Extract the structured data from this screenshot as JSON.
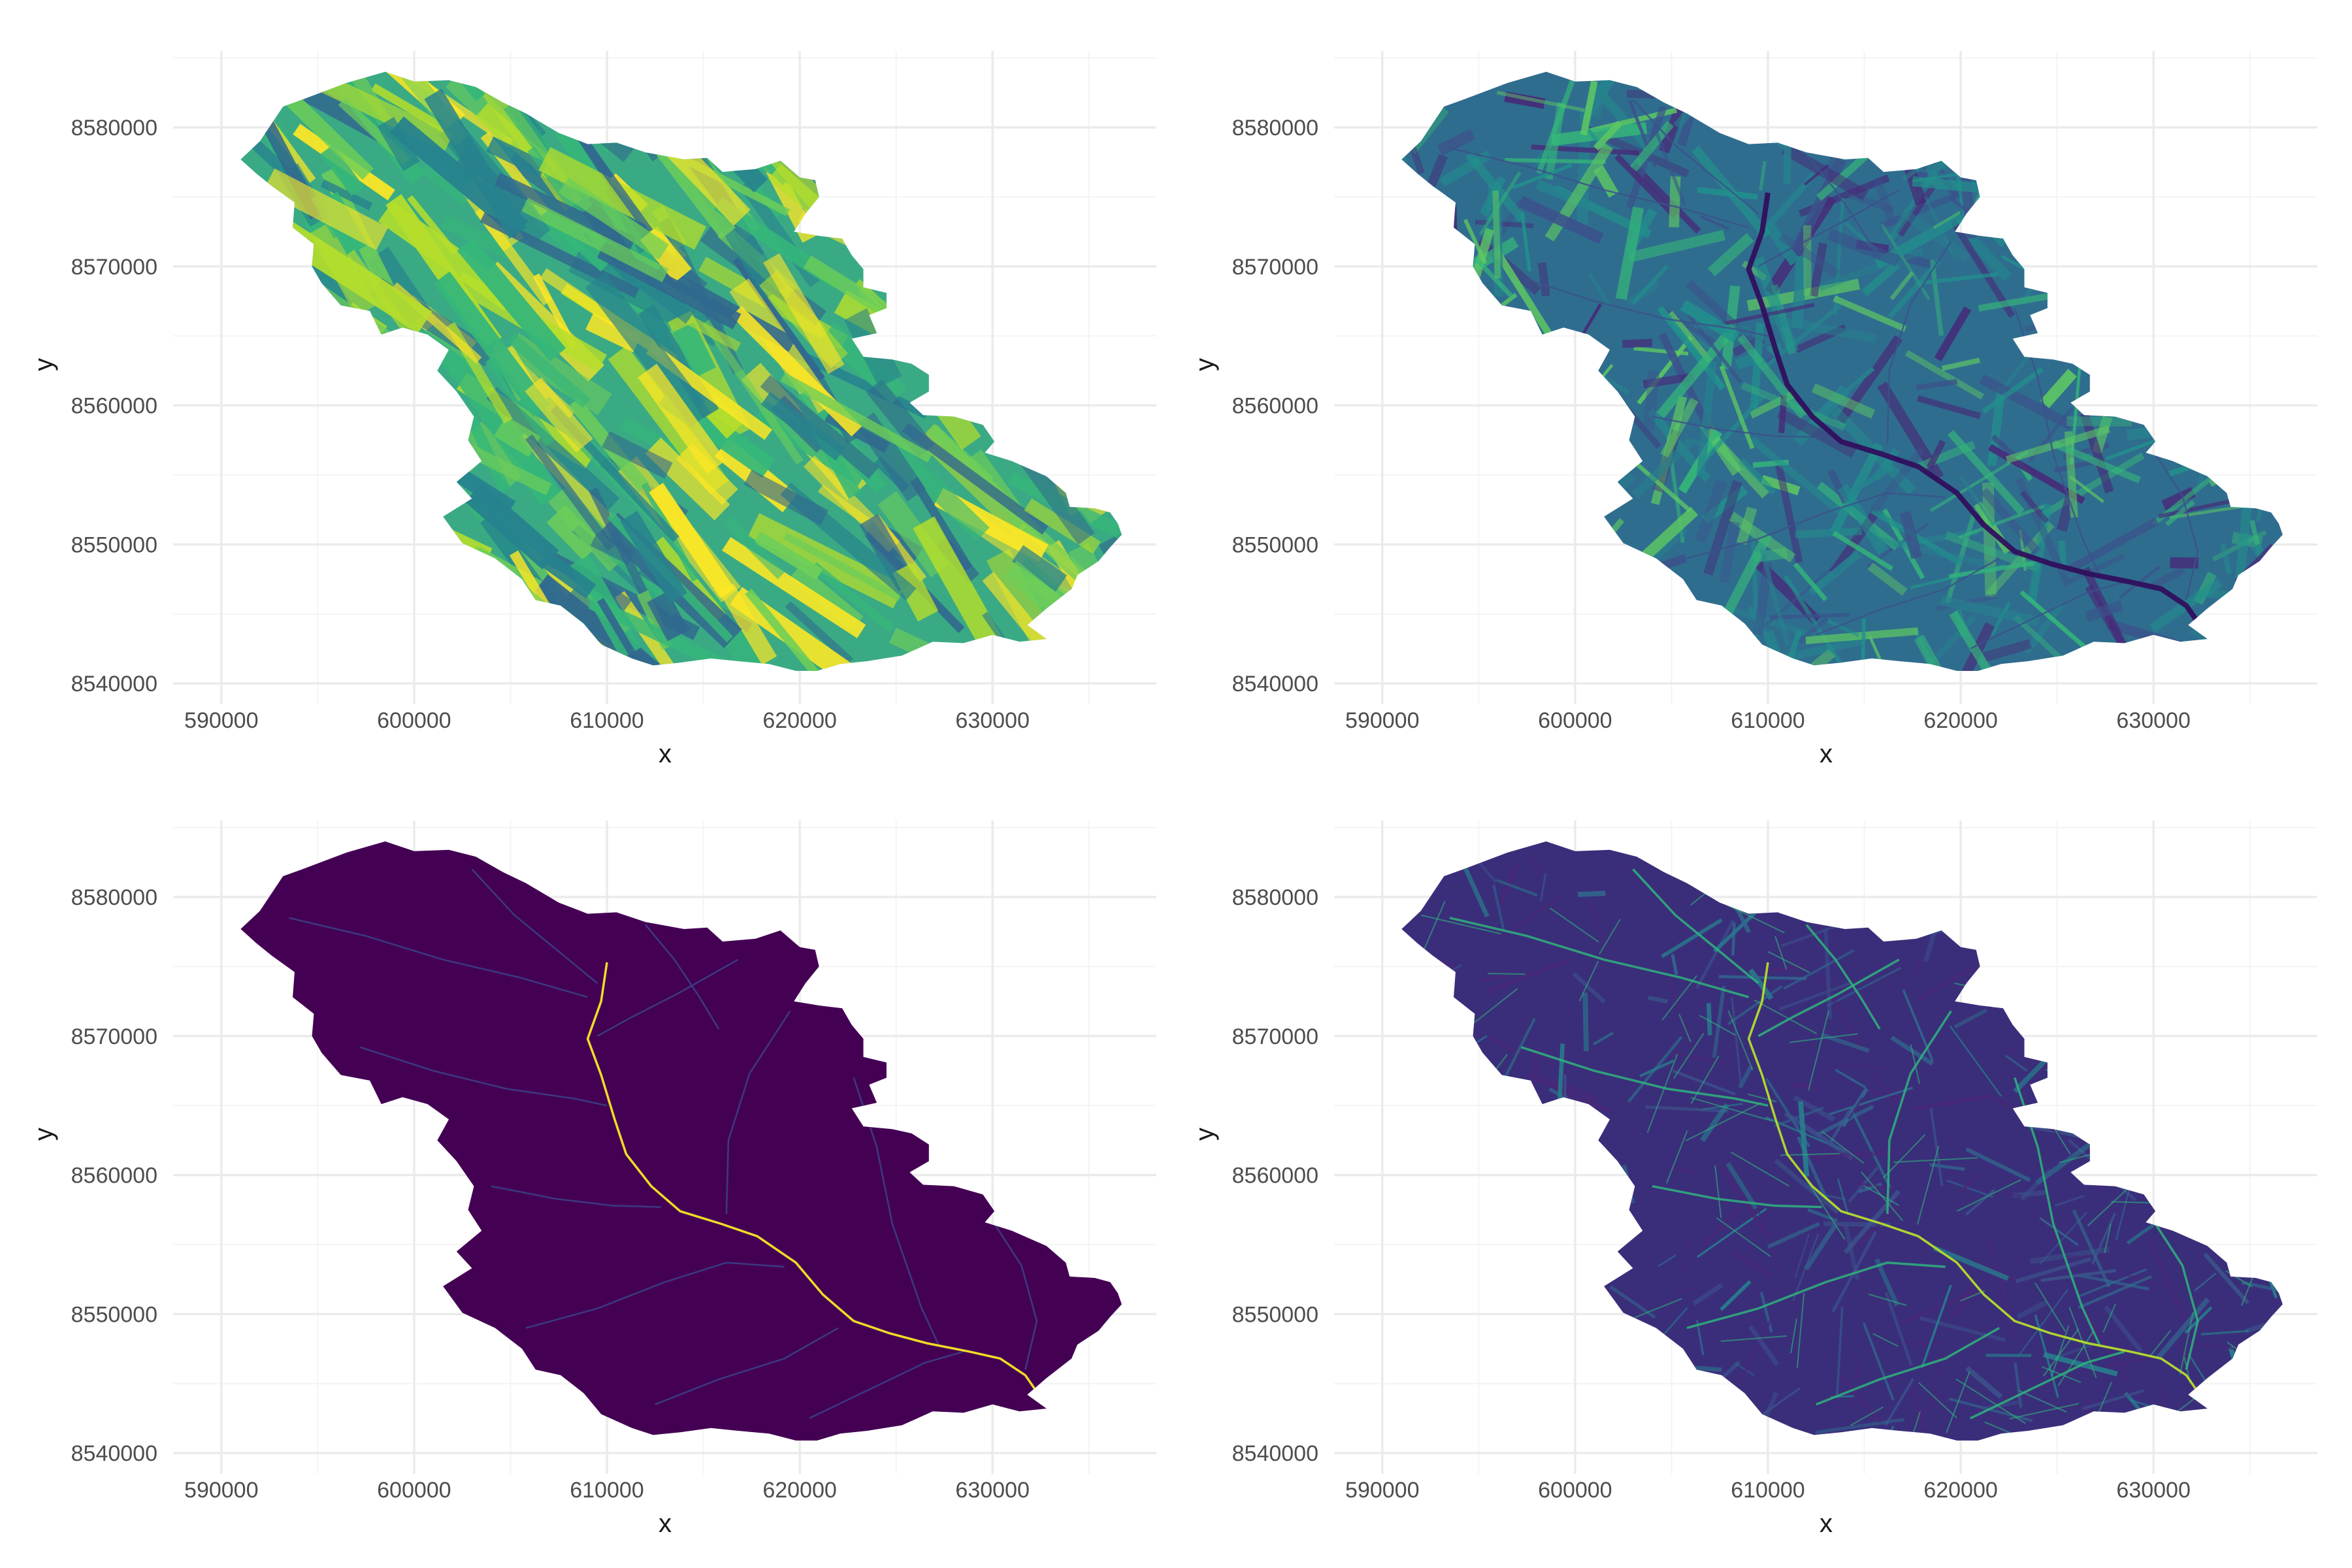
{
  "figure": {
    "layout": "2x2 grid of raster map panels",
    "background": "#ffffff",
    "grid_major_color": "#ebebeb",
    "grid_minor_color": "#f4f4f4",
    "tick_label_color": "#4d4d4d",
    "axis_title_color": "#1a1a1a"
  },
  "chart_data": [
    {
      "type": "heatmap",
      "panel": "top-left",
      "title": "",
      "xlabel": "x",
      "ylabel": "y",
      "xlim": [
        587500,
        638500
      ],
      "ylim": [
        8538500,
        8585500
      ],
      "x_ticks": [
        590000,
        600000,
        610000,
        620000,
        630000
      ],
      "y_ticks": [
        8540000,
        8550000,
        8560000,
        8570000,
        8580000
      ],
      "x_tick_labels": [
        "590000",
        "600000",
        "610000",
        "620000",
        "630000"
      ],
      "y_tick_labels": [
        "8540000",
        "8550000",
        "8560000",
        "8570000",
        "8580000"
      ],
      "grid": true,
      "legend": "none",
      "colormap": "viridis",
      "fill_color": "#3aaa84",
      "texture": "hillshade",
      "stream_color": null,
      "main_stream_color": null,
      "palette": [
        "#26828e",
        "#35b779",
        "#6ece58",
        "#b5de2b",
        "#fde725",
        "#31688e"
      ]
    },
    {
      "type": "heatmap",
      "panel": "top-right",
      "title": "",
      "xlabel": "x",
      "ylabel": "y",
      "xlim": [
        587500,
        638500
      ],
      "ylim": [
        8538500,
        8585500
      ],
      "x_ticks": [
        590000,
        600000,
        610000,
        620000,
        630000
      ],
      "y_ticks": [
        8540000,
        8550000,
        8560000,
        8570000,
        8580000
      ],
      "x_tick_labels": [
        "590000",
        "600000",
        "610000",
        "620000",
        "630000"
      ],
      "y_tick_labels": [
        "8540000",
        "8550000",
        "8560000",
        "8570000",
        "8580000"
      ],
      "grid": true,
      "legend": "none",
      "colormap": "viridis",
      "fill_color": "#2f6d8e",
      "texture": "slope",
      "stream_color": "#3b528b",
      "main_stream_color": "#30105e",
      "palette": [
        "#3b528b",
        "#26828e",
        "#21918c",
        "#35b779",
        "#5ec962",
        "#482878"
      ]
    },
    {
      "type": "heatmap",
      "panel": "bottom-left",
      "title": "",
      "xlabel": "x",
      "ylabel": "y",
      "xlim": [
        587500,
        638500
      ],
      "ylim": [
        8538500,
        8585500
      ],
      "x_ticks": [
        590000,
        600000,
        610000,
        620000,
        630000
      ],
      "y_ticks": [
        8540000,
        8550000,
        8560000,
        8570000,
        8580000
      ],
      "x_tick_labels": [
        "590000",
        "600000",
        "610000",
        "620000",
        "630000"
      ],
      "y_tick_labels": [
        "8540000",
        "8550000",
        "8560000",
        "8570000",
        "8580000"
      ],
      "grid": true,
      "legend": "none",
      "colormap": "viridis",
      "fill_color": "#440154",
      "texture": "flat",
      "stream_color": "#3b3f86",
      "main_stream_color": "#fde725",
      "palette": []
    },
    {
      "type": "heatmap",
      "panel": "bottom-right",
      "title": "",
      "xlabel": "x",
      "ylabel": "y",
      "xlim": [
        587500,
        638500
      ],
      "ylim": [
        8538500,
        8585500
      ],
      "x_ticks": [
        590000,
        600000,
        610000,
        620000,
        630000
      ],
      "y_ticks": [
        8540000,
        8550000,
        8560000,
        8570000,
        8580000
      ],
      "x_tick_labels": [
        "590000",
        "600000",
        "610000",
        "620000",
        "630000"
      ],
      "y_tick_labels": [
        "8540000",
        "8550000",
        "8560000",
        "8570000",
        "8580000"
      ],
      "grid": true,
      "legend": "none",
      "colormap": "viridis",
      "fill_color": "#3a2e7a",
      "texture": "flow-network",
      "stream_color": "#2fb47c",
      "main_stream_color": "#b5de2b",
      "palette": [
        "#31688e",
        "#3b528b",
        "#26828e",
        "#482878"
      ]
    }
  ],
  "catchment": {
    "outline": [
      [
        591000,
        8577700
      ],
      [
        592000,
        8579000
      ],
      [
        593200,
        8581500
      ],
      [
        594200,
        8582000
      ],
      [
        596500,
        8583200
      ],
      [
        598500,
        8584000
      ],
      [
        600000,
        8583300
      ],
      [
        601800,
        8583400
      ],
      [
        603200,
        8582900
      ],
      [
        604600,
        8581800
      ],
      [
        605800,
        8581000
      ],
      [
        607500,
        8579600
      ],
      [
        609000,
        8578800
      ],
      [
        610500,
        8578900
      ],
      [
        612000,
        8578200
      ],
      [
        614000,
        8577700
      ],
      [
        615200,
        8577800
      ],
      [
        616000,
        8576800
      ],
      [
        617700,
        8577000
      ],
      [
        619000,
        8577600
      ],
      [
        620000,
        8576400
      ],
      [
        620800,
        8576200
      ],
      [
        621000,
        8575000
      ],
      [
        620300,
        8573800
      ],
      [
        619700,
        8572500
      ],
      [
        621000,
        8572200
      ],
      [
        622200,
        8572000
      ],
      [
        622700,
        8570800
      ],
      [
        623300,
        8569800
      ],
      [
        623300,
        8568500
      ],
      [
        624500,
        8568100
      ],
      [
        624500,
        8567000
      ],
      [
        623600,
        8566500
      ],
      [
        624000,
        8565200
      ],
      [
        622700,
        8564800
      ],
      [
        623300,
        8563500
      ],
      [
        624800,
        8563300
      ],
      [
        625800,
        8563000
      ],
      [
        626700,
        8562200
      ],
      [
        626700,
        8561000
      ],
      [
        625700,
        8560200
      ],
      [
        626400,
        8559300
      ],
      [
        628000,
        8559200
      ],
      [
        629500,
        8558600
      ],
      [
        630100,
        8557400
      ],
      [
        629600,
        8556600
      ],
      [
        631000,
        8556000
      ],
      [
        632800,
        8554900
      ],
      [
        633800,
        8553700
      ],
      [
        634000,
        8552700
      ],
      [
        635300,
        8552600
      ],
      [
        636100,
        8552300
      ],
      [
        636500,
        8551500
      ],
      [
        636700,
        8550700
      ],
      [
        636100,
        8549800
      ],
      [
        635500,
        8548800
      ],
      [
        634400,
        8547800
      ],
      [
        634100,
        8546800
      ],
      [
        632800,
        8545400
      ],
      [
        631800,
        8544200
      ],
      [
        632800,
        8543200
      ],
      [
        631400,
        8543000
      ],
      [
        630000,
        8543500
      ],
      [
        628500,
        8542900
      ],
      [
        626900,
        8543000
      ],
      [
        625300,
        8542000
      ],
      [
        623500,
        8541600
      ],
      [
        622100,
        8541400
      ],
      [
        620900,
        8540900
      ],
      [
        619800,
        8540900
      ],
      [
        618400,
        8541400
      ],
      [
        616800,
        8541600
      ],
      [
        615400,
        8541800
      ],
      [
        613800,
        8541500
      ],
      [
        612400,
        8541300
      ],
      [
        611300,
        8541800
      ],
      [
        609700,
        8542800
      ],
      [
        608800,
        8544300
      ],
      [
        607600,
        8545600
      ],
      [
        606300,
        8546000
      ],
      [
        605600,
        8547500
      ],
      [
        604200,
        8549000
      ],
      [
        602500,
        8550100
      ],
      [
        601500,
        8552000
      ],
      [
        603000,
        8553300
      ],
      [
        602200,
        8554500
      ],
      [
        603500,
        8556000
      ],
      [
        602800,
        8557500
      ],
      [
        603100,
        8559200
      ],
      [
        602200,
        8561000
      ],
      [
        601200,
        8562500
      ],
      [
        601800,
        8564000
      ],
      [
        600700,
        8565100
      ],
      [
        599400,
        8565600
      ],
      [
        598300,
        8565100
      ],
      [
        597700,
        8566800
      ],
      [
        596200,
        8567200
      ],
      [
        595200,
        8568800
      ],
      [
        594700,
        8570000
      ],
      [
        594800,
        8571600
      ],
      [
        593700,
        8572800
      ],
      [
        593800,
        8574600
      ],
      [
        592600,
        8575800
      ],
      [
        591800,
        8576700
      ]
    ],
    "main_stream": [
      [
        610000,
        8575300
      ],
      [
        609700,
        8572500
      ],
      [
        609000,
        8569800
      ],
      [
        609700,
        8567200
      ],
      [
        610400,
        8564000
      ],
      [
        611000,
        8561500
      ],
      [
        612300,
        8559200
      ],
      [
        613800,
        8557400
      ],
      [
        615900,
        8556500
      ],
      [
        617800,
        8555600
      ],
      [
        619800,
        8553700
      ],
      [
        621200,
        8551400
      ],
      [
        622800,
        8549500
      ],
      [
        624700,
        8548600
      ],
      [
        626600,
        8547900
      ],
      [
        628800,
        8547300
      ],
      [
        630400,
        8546800
      ],
      [
        631700,
        8545600
      ],
      [
        632800,
        8543400
      ]
    ],
    "tributaries": [
      [
        [
          593500,
          8578500
        ],
        [
          597500,
          8577200
        ],
        [
          601500,
          8575500
        ],
        [
          605500,
          8574200
        ],
        [
          609000,
          8572800
        ]
      ],
      [
        [
          603000,
          8582000
        ],
        [
          605200,
          8578700
        ],
        [
          607400,
          8576200
        ],
        [
          609500,
          8573800
        ]
      ],
      [
        [
          616800,
          8575500
        ],
        [
          613600,
          8573000
        ],
        [
          611200,
          8571300
        ],
        [
          609500,
          8570000
        ]
      ],
      [
        [
          597200,
          8569200
        ],
        [
          601000,
          8567500
        ],
        [
          604800,
          8566200
        ],
        [
          608300,
          8565500
        ],
        [
          610000,
          8565000
        ]
      ],
      [
        [
          619500,
          8571800
        ],
        [
          617400,
          8567300
        ],
        [
          616300,
          8562500
        ],
        [
          616200,
          8557200
        ]
      ],
      [
        [
          604000,
          8559200
        ],
        [
          607300,
          8558300
        ],
        [
          610300,
          8557800
        ],
        [
          612800,
          8557700
        ]
      ],
      [
        [
          605800,
          8549000
        ],
        [
          609500,
          8550400
        ],
        [
          613000,
          8552300
        ],
        [
          616200,
          8553700
        ],
        [
          619200,
          8553400
        ]
      ],
      [
        [
          622800,
          8567000
        ],
        [
          624000,
          8562000
        ],
        [
          624800,
          8556500
        ],
        [
          626300,
          8550500
        ],
        [
          627200,
          8547800
        ]
      ],
      [
        [
          612500,
          8543500
        ],
        [
          615800,
          8545300
        ],
        [
          619200,
          8546800
        ],
        [
          622000,
          8549000
        ]
      ],
      [
        [
          630000,
          8556700
        ],
        [
          631500,
          8553500
        ],
        [
          632300,
          8549500
        ],
        [
          631700,
          8546000
        ]
      ],
      [
        [
          620500,
          8542500
        ],
        [
          623500,
          8544500
        ],
        [
          626500,
          8546500
        ],
        [
          628500,
          8547300
        ]
      ],
      [
        [
          612000,
          8578000
        ],
        [
          613500,
          8575500
        ],
        [
          614800,
          8572800
        ],
        [
          615800,
          8570500
        ]
      ]
    ]
  }
}
